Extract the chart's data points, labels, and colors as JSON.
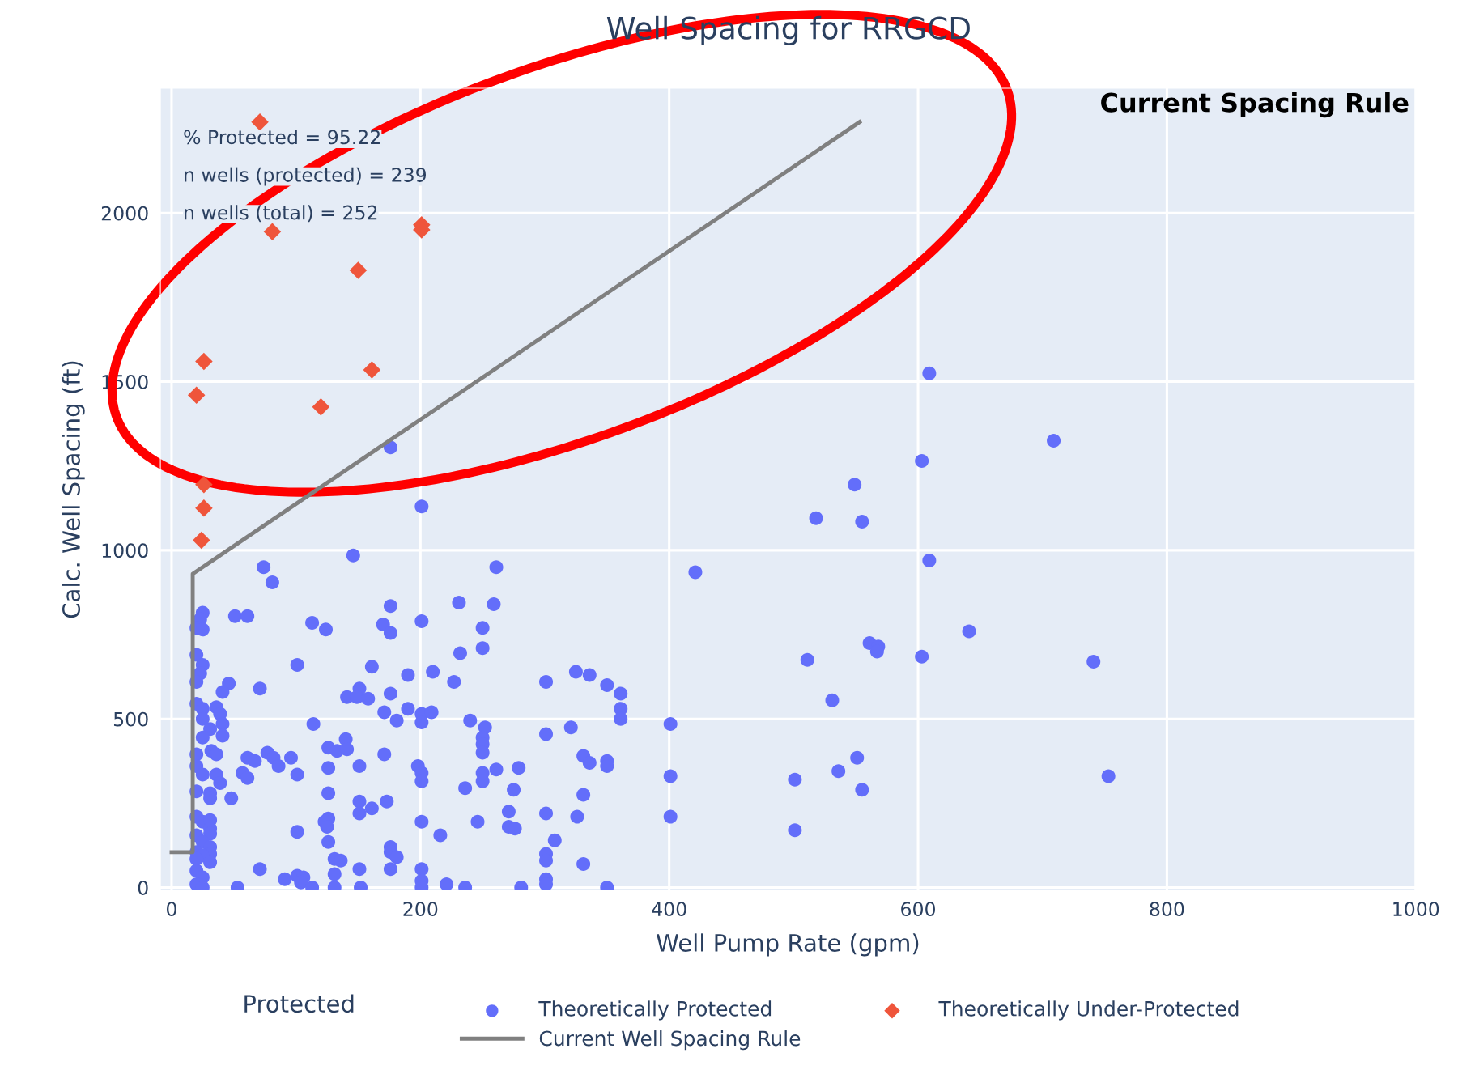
{
  "chart_data": {
    "type": "scatter",
    "title": "Well Spacing for RRGCD",
    "xlabel": "Well Pump Rate (gpm)",
    "ylabel": "Calc. Well Spacing (ft)",
    "legend_title": "Protected",
    "annotations": [
      "% Protected = 95.22",
      "n wells (protected) = 239",
      "n wells (total) = 252",
      "Current Spacing Rule"
    ],
    "xlim": [
      -9,
      1000
    ],
    "ylim": [
      -8,
      2370
    ],
    "xticks": [
      0,
      200,
      400,
      600,
      800,
      1000
    ],
    "yticks": [
      0,
      500,
      1000,
      1500,
      2000
    ],
    "grid": true,
    "legend": "bottom",
    "series": [
      {
        "name": "Theoretically Protected",
        "type": "scatter",
        "color": "#636efa",
        "marker": "circle",
        "x": [
          146,
          74,
          81,
          261,
          25,
          23,
          20,
          25,
          51,
          61,
          176,
          231,
          259,
          113,
          124,
          170,
          176,
          201,
          250,
          250,
          232,
          20,
          25,
          23,
          20,
          101,
          161,
          190,
          210,
          227,
          301,
          325,
          336,
          350,
          46,
          41,
          71,
          141,
          151,
          149,
          158,
          176,
          20,
          25,
          36,
          39,
          25,
          41,
          31,
          25,
          41,
          171,
          181,
          190,
          201,
          201,
          209,
          240,
          252,
          250,
          250,
          250,
          301,
          321,
          114,
          140,
          126,
          133,
          141,
          171,
          77,
          82,
          86,
          61,
          67,
          96,
          32,
          36,
          20,
          20,
          126,
          151,
          198,
          201,
          201,
          250,
          250,
          261,
          279,
          331,
          336,
          350,
          350,
          57,
          61,
          101,
          25,
          36,
          39,
          20,
          31,
          31,
          48,
          126,
          236,
          275,
          331,
          301,
          271,
          326,
          151,
          161,
          173,
          151,
          201,
          246,
          271,
          276,
          216,
          308,
          126,
          123,
          125,
          101,
          20,
          25,
          31,
          31,
          31,
          20,
          25,
          31,
          20,
          31,
          25,
          31,
          20,
          126,
          176,
          176,
          181,
          131,
          136,
          301,
          301,
          331,
          71,
          20,
          25,
          131,
          151,
          176,
          201,
          201,
          91,
          101,
          106,
          104,
          20,
          25,
          53,
          113,
          131,
          152,
          201,
          221,
          236,
          281,
          301,
          301,
          350,
          518,
          555,
          421,
          609,
          641,
          561,
          568,
          567,
          511,
          603,
          741,
          531,
          361,
          361,
          361,
          401,
          401,
          501,
          536,
          551,
          555,
          753,
          401,
          501,
          609,
          709,
          603,
          549,
          176,
          201
        ],
        "values": [
          985,
          950,
          905,
          950,
          815,
          795,
          770,
          765,
          805,
          805,
          835,
          845,
          840,
          785,
          765,
          780,
          755,
          790,
          770,
          710,
          695,
          690,
          660,
          635,
          610,
          660,
          655,
          630,
          640,
          610,
          610,
          640,
          630,
          600,
          605,
          580,
          590,
          565,
          590,
          565,
          560,
          575,
          545,
          530,
          535,
          515,
          500,
          485,
          470,
          445,
          450,
          520,
          495,
          530,
          515,
          490,
          520,
          495,
          475,
          445,
          425,
          400,
          455,
          475,
          485,
          440,
          415,
          405,
          410,
          395,
          400,
          385,
          360,
          385,
          375,
          385,
          405,
          395,
          395,
          360,
          355,
          360,
          360,
          340,
          315,
          340,
          315,
          350,
          355,
          390,
          370,
          375,
          360,
          340,
          325,
          335,
          335,
          335,
          310,
          285,
          280,
          265,
          265,
          280,
          295,
          290,
          275,
          220,
          225,
          210,
          255,
          235,
          255,
          220,
          195,
          195,
          180,
          175,
          155,
          140,
          205,
          195,
          180,
          165,
          210,
          195,
          200,
          175,
          160,
          155,
          135,
          120,
          105,
          100,
          95,
          75,
          85,
          135,
          120,
          105,
          90,
          85,
          80,
          100,
          80,
          70,
          55,
          50,
          30,
          40,
          55,
          55,
          55,
          20,
          25,
          35,
          30,
          15,
          10,
          0,
          0,
          0,
          0,
          0,
          0,
          10,
          0,
          0,
          25,
          10,
          0,
          1095,
          1085,
          935,
          970,
          760,
          725,
          715,
          700,
          675,
          685,
          670,
          555,
          575,
          530,
          500,
          485,
          330,
          320,
          345,
          385,
          290,
          330,
          210,
          170,
          1525,
          1325,
          1265,
          1195,
          1305,
          1130
        ]
      },
      {
        "name": "Theoretically Under-Protected",
        "type": "scatter",
        "color": "#ef553b",
        "marker": "diamond",
        "x": [
          71,
          81,
          201,
          201,
          150,
          26,
          161,
          20,
          120,
          26,
          26,
          24
        ],
        "values": [
          2270,
          1945,
          1965,
          1950,
          1830,
          1560,
          1535,
          1460,
          1425,
          1195,
          1125,
          1030
        ]
      },
      {
        "name": "Current Well Spacing Rule",
        "type": "line",
        "color": "#808080",
        "marker": "none",
        "line_style": "solid",
        "x": [
          0,
          17,
          17,
          553
        ],
        "values": [
          105,
          105,
          930,
          2270
        ]
      }
    ]
  }
}
